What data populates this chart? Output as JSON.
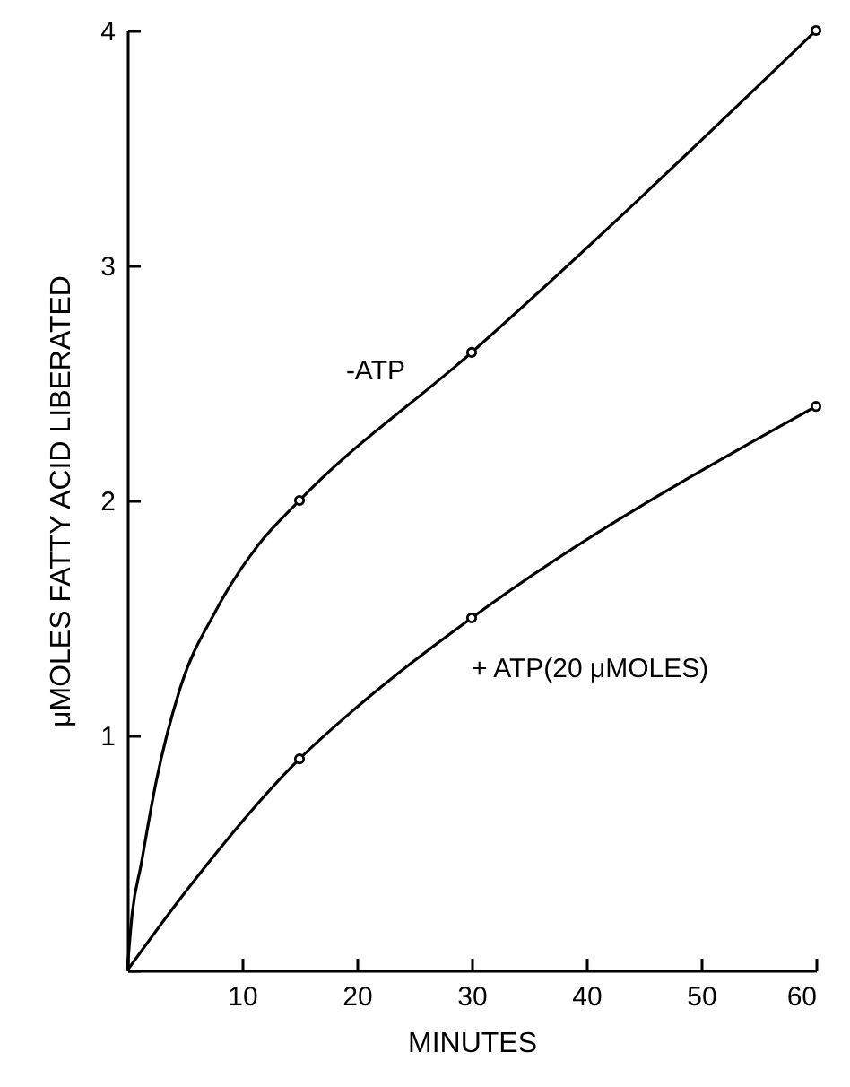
{
  "chart_data": {
    "type": "line",
    "xlabel": "MINUTES",
    "ylabel": "μMOLES FATTY ACID LIBERATED",
    "xlim": [
      0,
      60
    ],
    "xticks": [
      {
        "value": 0,
        "label": null
      },
      10,
      20,
      30,
      40,
      50,
      60
    ],
    "ylim": [
      0,
      4
    ],
    "yticks": [
      {
        "value": 0,
        "label": null
      },
      1,
      2,
      3,
      4
    ],
    "series": [
      {
        "name": "-ATP",
        "color": "#000000",
        "x": [
          0,
          0.4,
          1.2,
          2.5,
          4.6,
          7.7,
          11.4,
          15,
          30,
          60
        ],
        "values": [
          0,
          0.23,
          0.45,
          0.8,
          1.2,
          1.53,
          1.81,
          2.0,
          2.63,
          4.0
        ]
      },
      {
        "name": "+ ATP(20 μMOLES)",
        "color": "#000000",
        "x": [
          0,
          5,
          15,
          20,
          30,
          60
        ],
        "values": [
          0,
          0.33,
          0.9,
          1.12,
          1.5,
          2.4
        ]
      },
      {
        "type": "scatter",
        "color": "#000000",
        "x": [
          15,
          30,
          60
        ],
        "values": [
          2.0,
          2.63,
          4.0
        ]
      },
      {
        "type": "scatter",
        "color": "#000000",
        "x": [
          15,
          30,
          60
        ],
        "values": [
          0.9,
          1.5,
          2.4
        ]
      }
    ]
  }
}
